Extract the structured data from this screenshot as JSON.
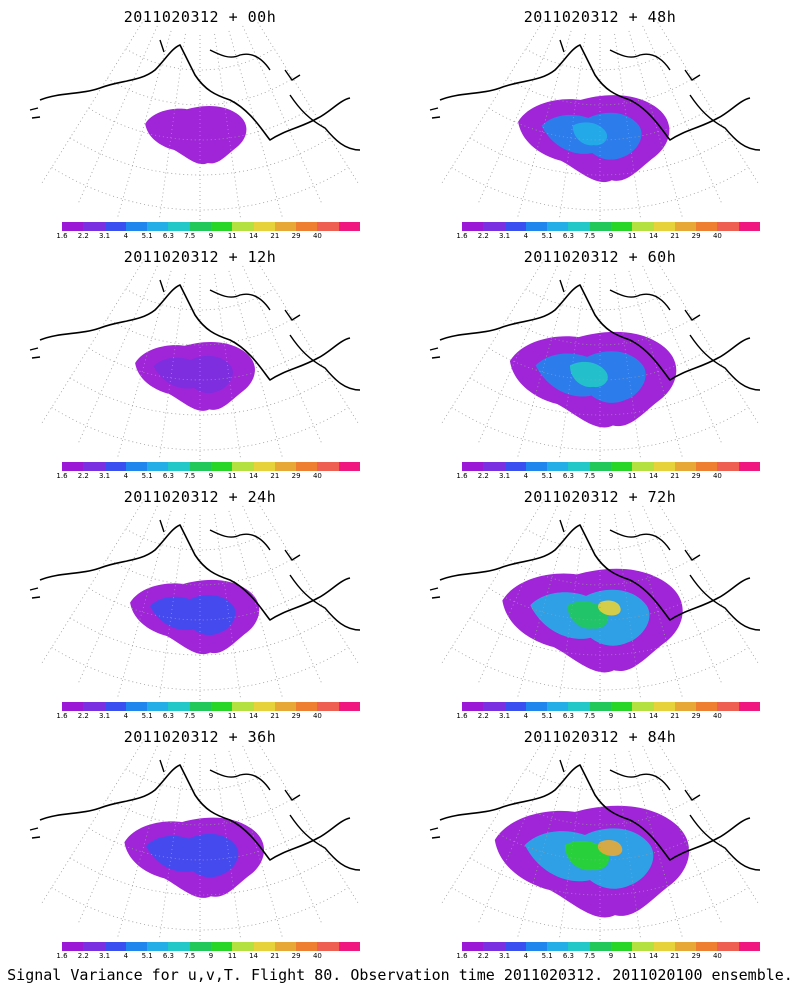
{
  "caption": "Signal Variance for u,v,T. Flight 80. Observation time 2011020312. 2011020100 ensemble.",
  "colorbar": {
    "labels": [
      "1.6",
      "2.2",
      "3.1",
      "4",
      "5.1",
      "6.3",
      "7.5",
      "9",
      "11",
      "14",
      "21",
      "29",
      "40"
    ],
    "colors": [
      "#9b19d6",
      "#7a2fe0",
      "#3a4ff0",
      "#1f86ee",
      "#24aee8",
      "#22c8c8",
      "#20c85a",
      "#28d628",
      "#b4e040",
      "#e6d23a",
      "#e8a836",
      "#ee7f30",
      "#ee5f52",
      "#f01880"
    ]
  },
  "panels": [
    {
      "title": "2011020312 + 00h",
      "level": 0.12
    },
    {
      "title": "2011020312 + 48h",
      "level": 0.55
    },
    {
      "title": "2011020312 + 12h",
      "level": 0.28
    },
    {
      "title": "2011020312 + 60h",
      "level": 0.68
    },
    {
      "title": "2011020312 + 24h",
      "level": 0.36
    },
    {
      "title": "2011020312 + 72h",
      "level": 0.8
    },
    {
      "title": "2011020312 + 36h",
      "level": 0.45
    },
    {
      "title": "2011020312 + 84h",
      "level": 0.92
    }
  ]
}
